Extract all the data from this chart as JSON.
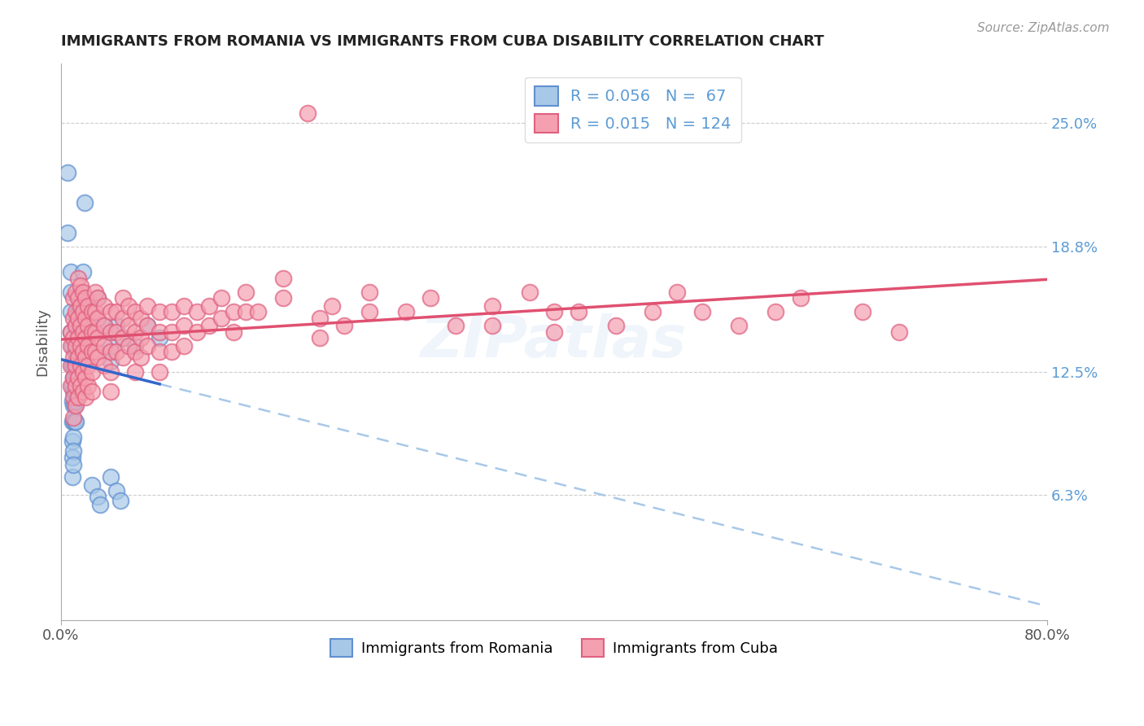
{
  "title": "IMMIGRANTS FROM ROMANIA VS IMMIGRANTS FROM CUBA DISABILITY CORRELATION CHART",
  "source": "Source: ZipAtlas.com",
  "ylabel": "Disability",
  "xlim": [
    0.0,
    0.8
  ],
  "ylim": [
    0.0,
    0.28
  ],
  "xtick_positions": [
    0.0,
    0.8
  ],
  "xtick_labels": [
    "0.0%",
    "80.0%"
  ],
  "ytick_vals": [
    0.063,
    0.125,
    0.188,
    0.25
  ],
  "ytick_labels": [
    "6.3%",
    "12.5%",
    "18.8%",
    "25.0%"
  ],
  "romania_color": "#a8c8e8",
  "cuba_color": "#f4a0b0",
  "romania_edge": "#6090d0",
  "cuba_edge": "#e06080",
  "trendline_romania_solid_color": "#4472C4",
  "trendline_romania_dashed_color": "#a8c8e8",
  "trendline_cuba_color": "#e05070",
  "watermark": "ZIPatlas",
  "background_color": "#ffffff",
  "grid_color": "#cccccc",
  "romania_scatter": [
    [
      0.005,
      0.225
    ],
    [
      0.005,
      0.195
    ],
    [
      0.008,
      0.175
    ],
    [
      0.008,
      0.165
    ],
    [
      0.008,
      0.155
    ],
    [
      0.008,
      0.145
    ],
    [
      0.009,
      0.138
    ],
    [
      0.009,
      0.128
    ],
    [
      0.009,
      0.118
    ],
    [
      0.009,
      0.11
    ],
    [
      0.009,
      0.1
    ],
    [
      0.009,
      0.09
    ],
    [
      0.009,
      0.082
    ],
    [
      0.009,
      0.072
    ],
    [
      0.01,
      0.128
    ],
    [
      0.01,
      0.122
    ],
    [
      0.01,
      0.115
    ],
    [
      0.01,
      0.108
    ],
    [
      0.01,
      0.1
    ],
    [
      0.01,
      0.092
    ],
    [
      0.01,
      0.085
    ],
    [
      0.01,
      0.078
    ],
    [
      0.011,
      0.135
    ],
    [
      0.011,
      0.128
    ],
    [
      0.011,
      0.122
    ],
    [
      0.011,
      0.115
    ],
    [
      0.011,
      0.108
    ],
    [
      0.011,
      0.1
    ],
    [
      0.012,
      0.148
    ],
    [
      0.012,
      0.138
    ],
    [
      0.012,
      0.128
    ],
    [
      0.012,
      0.118
    ],
    [
      0.012,
      0.11
    ],
    [
      0.012,
      0.1
    ],
    [
      0.013,
      0.142
    ],
    [
      0.013,
      0.132
    ],
    [
      0.013,
      0.122
    ],
    [
      0.013,
      0.112
    ],
    [
      0.014,
      0.155
    ],
    [
      0.014,
      0.145
    ],
    [
      0.014,
      0.135
    ],
    [
      0.014,
      0.125
    ],
    [
      0.015,
      0.158
    ],
    [
      0.015,
      0.148
    ],
    [
      0.015,
      0.138
    ],
    [
      0.016,
      0.165
    ],
    [
      0.016,
      0.155
    ],
    [
      0.016,
      0.145
    ],
    [
      0.018,
      0.175
    ],
    [
      0.018,
      0.162
    ],
    [
      0.019,
      0.21
    ],
    [
      0.02,
      0.148
    ],
    [
      0.02,
      0.138
    ],
    [
      0.022,
      0.155
    ],
    [
      0.025,
      0.148
    ],
    [
      0.03,
      0.162
    ],
    [
      0.035,
      0.148
    ],
    [
      0.04,
      0.138
    ],
    [
      0.04,
      0.13
    ],
    [
      0.045,
      0.148
    ],
    [
      0.05,
      0.142
    ],
    [
      0.06,
      0.138
    ],
    [
      0.07,
      0.148
    ],
    [
      0.08,
      0.142
    ],
    [
      0.025,
      0.068
    ],
    [
      0.03,
      0.062
    ],
    [
      0.032,
      0.058
    ],
    [
      0.04,
      0.072
    ],
    [
      0.045,
      0.065
    ],
    [
      0.048,
      0.06
    ]
  ],
  "cuba_scatter": [
    [
      0.008,
      0.145
    ],
    [
      0.008,
      0.138
    ],
    [
      0.008,
      0.128
    ],
    [
      0.008,
      0.118
    ],
    [
      0.01,
      0.162
    ],
    [
      0.01,
      0.152
    ],
    [
      0.01,
      0.142
    ],
    [
      0.01,
      0.132
    ],
    [
      0.01,
      0.122
    ],
    [
      0.01,
      0.112
    ],
    [
      0.01,
      0.102
    ],
    [
      0.012,
      0.165
    ],
    [
      0.012,
      0.155
    ],
    [
      0.012,
      0.148
    ],
    [
      0.012,
      0.138
    ],
    [
      0.012,
      0.128
    ],
    [
      0.012,
      0.118
    ],
    [
      0.012,
      0.108
    ],
    [
      0.014,
      0.172
    ],
    [
      0.014,
      0.162
    ],
    [
      0.014,
      0.152
    ],
    [
      0.014,
      0.142
    ],
    [
      0.014,
      0.132
    ],
    [
      0.014,
      0.122
    ],
    [
      0.014,
      0.112
    ],
    [
      0.016,
      0.168
    ],
    [
      0.016,
      0.158
    ],
    [
      0.016,
      0.148
    ],
    [
      0.016,
      0.138
    ],
    [
      0.016,
      0.128
    ],
    [
      0.016,
      0.118
    ],
    [
      0.018,
      0.165
    ],
    [
      0.018,
      0.155
    ],
    [
      0.018,
      0.145
    ],
    [
      0.018,
      0.135
    ],
    [
      0.018,
      0.125
    ],
    [
      0.018,
      0.115
    ],
    [
      0.02,
      0.162
    ],
    [
      0.02,
      0.152
    ],
    [
      0.02,
      0.142
    ],
    [
      0.02,
      0.132
    ],
    [
      0.02,
      0.122
    ],
    [
      0.02,
      0.112
    ],
    [
      0.022,
      0.158
    ],
    [
      0.022,
      0.148
    ],
    [
      0.022,
      0.138
    ],
    [
      0.022,
      0.128
    ],
    [
      0.022,
      0.118
    ],
    [
      0.025,
      0.155
    ],
    [
      0.025,
      0.145
    ],
    [
      0.025,
      0.135
    ],
    [
      0.025,
      0.125
    ],
    [
      0.025,
      0.115
    ],
    [
      0.028,
      0.165
    ],
    [
      0.028,
      0.155
    ],
    [
      0.028,
      0.145
    ],
    [
      0.028,
      0.135
    ],
    [
      0.03,
      0.162
    ],
    [
      0.03,
      0.152
    ],
    [
      0.03,
      0.142
    ],
    [
      0.03,
      0.132
    ],
    [
      0.035,
      0.158
    ],
    [
      0.035,
      0.148
    ],
    [
      0.035,
      0.138
    ],
    [
      0.035,
      0.128
    ],
    [
      0.04,
      0.155
    ],
    [
      0.04,
      0.145
    ],
    [
      0.04,
      0.135
    ],
    [
      0.04,
      0.125
    ],
    [
      0.04,
      0.115
    ],
    [
      0.045,
      0.155
    ],
    [
      0.045,
      0.145
    ],
    [
      0.045,
      0.135
    ],
    [
      0.05,
      0.162
    ],
    [
      0.05,
      0.152
    ],
    [
      0.05,
      0.142
    ],
    [
      0.05,
      0.132
    ],
    [
      0.055,
      0.158
    ],
    [
      0.055,
      0.148
    ],
    [
      0.055,
      0.138
    ],
    [
      0.06,
      0.155
    ],
    [
      0.06,
      0.145
    ],
    [
      0.06,
      0.135
    ],
    [
      0.06,
      0.125
    ],
    [
      0.065,
      0.152
    ],
    [
      0.065,
      0.142
    ],
    [
      0.065,
      0.132
    ],
    [
      0.07,
      0.158
    ],
    [
      0.07,
      0.148
    ],
    [
      0.07,
      0.138
    ],
    [
      0.08,
      0.155
    ],
    [
      0.08,
      0.145
    ],
    [
      0.08,
      0.135
    ],
    [
      0.08,
      0.125
    ],
    [
      0.09,
      0.155
    ],
    [
      0.09,
      0.145
    ],
    [
      0.09,
      0.135
    ],
    [
      0.1,
      0.158
    ],
    [
      0.1,
      0.148
    ],
    [
      0.1,
      0.138
    ],
    [
      0.11,
      0.155
    ],
    [
      0.11,
      0.145
    ],
    [
      0.12,
      0.158
    ],
    [
      0.12,
      0.148
    ],
    [
      0.13,
      0.162
    ],
    [
      0.13,
      0.152
    ],
    [
      0.14,
      0.155
    ],
    [
      0.14,
      0.145
    ],
    [
      0.15,
      0.165
    ],
    [
      0.15,
      0.155
    ],
    [
      0.16,
      0.155
    ],
    [
      0.18,
      0.172
    ],
    [
      0.18,
      0.162
    ],
    [
      0.2,
      0.255
    ],
    [
      0.21,
      0.152
    ],
    [
      0.21,
      0.142
    ],
    [
      0.22,
      0.158
    ],
    [
      0.23,
      0.148
    ],
    [
      0.25,
      0.165
    ],
    [
      0.25,
      0.155
    ],
    [
      0.28,
      0.155
    ],
    [
      0.3,
      0.162
    ],
    [
      0.32,
      0.148
    ],
    [
      0.35,
      0.158
    ],
    [
      0.35,
      0.148
    ],
    [
      0.38,
      0.165
    ],
    [
      0.4,
      0.155
    ],
    [
      0.4,
      0.145
    ],
    [
      0.42,
      0.155
    ],
    [
      0.45,
      0.148
    ],
    [
      0.48,
      0.155
    ],
    [
      0.5,
      0.165
    ],
    [
      0.52,
      0.155
    ],
    [
      0.55,
      0.148
    ],
    [
      0.58,
      0.155
    ],
    [
      0.6,
      0.162
    ],
    [
      0.65,
      0.155
    ],
    [
      0.68,
      0.145
    ]
  ]
}
